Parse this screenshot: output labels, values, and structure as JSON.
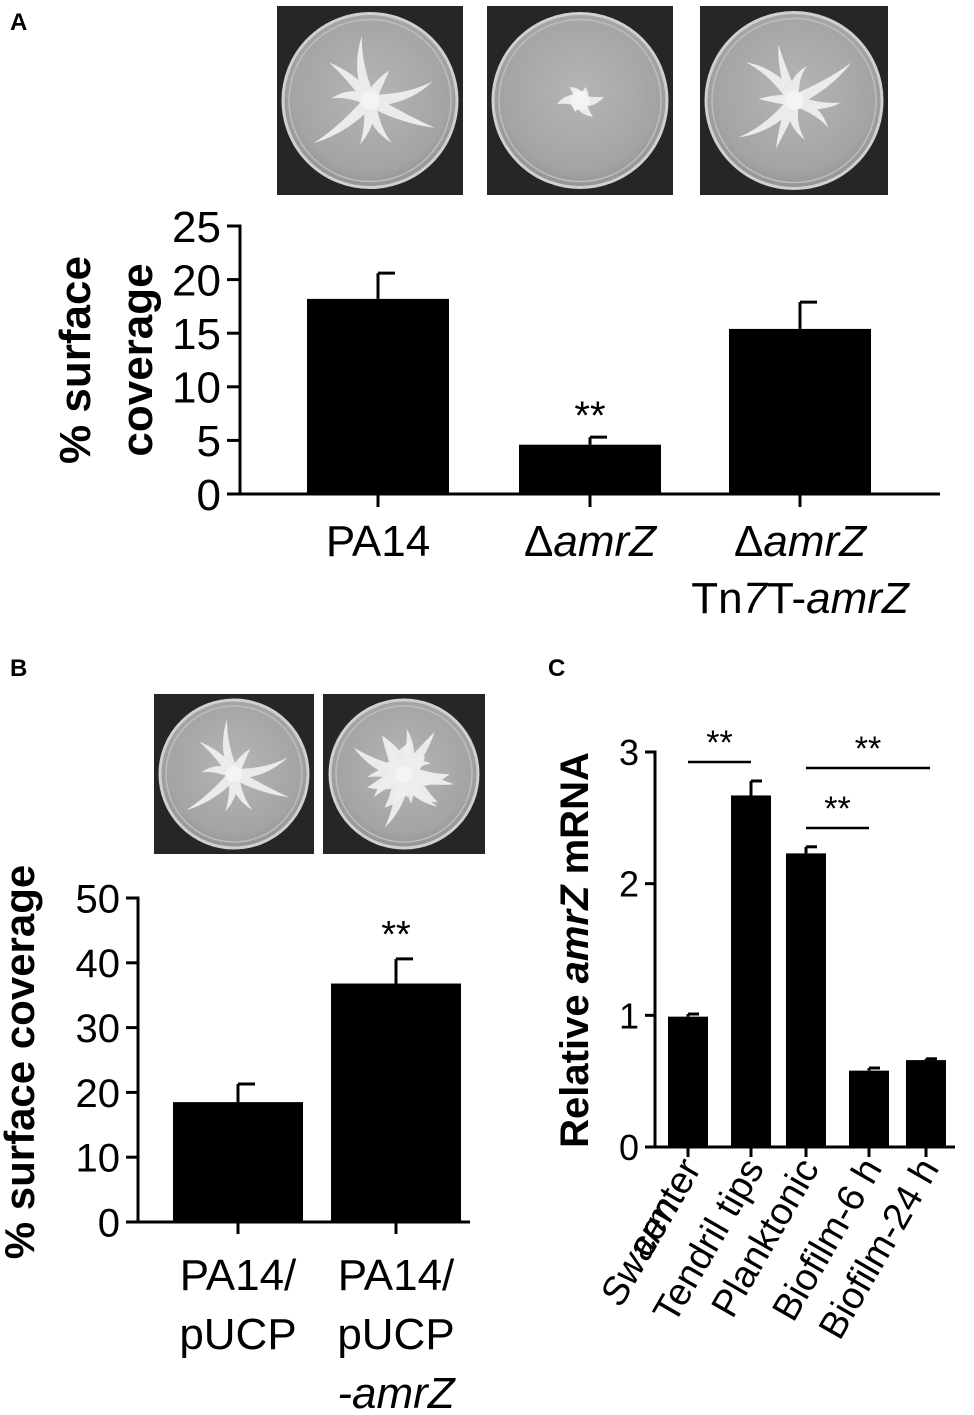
{
  "panels": [
    {
      "label": "A"
    },
    {
      "label": "B"
    },
    {
      "label": "C"
    }
  ],
  "chart_data": [
    {
      "type": "bar",
      "panel": "A",
      "ylabel_lines": [
        "% surface",
        "coverage"
      ],
      "categories": [
        {
          "lines": [
            {
              "parts": [
                {
                  "t": "PA14",
                  "i": false
                }
              ]
            }
          ]
        },
        {
          "lines": [
            {
              "parts": [
                {
                  "t": "Δ",
                  "i": false
                },
                {
                  "t": "amrZ",
                  "i": true
                }
              ]
            }
          ]
        },
        {
          "lines": [
            {
              "parts": [
                {
                  "t": "Δ",
                  "i": false
                },
                {
                  "t": "amrZ",
                  "i": true
                }
              ]
            },
            {
              "parts": [
                {
                  "t": "Tn",
                  "i": false
                },
                {
                  "t": "7",
                  "i": true
                },
                {
                  "t": "T-",
                  "i": false
                },
                {
                  "t": "amrZ",
                  "i": true
                }
              ]
            }
          ]
        }
      ],
      "values": [
        18.2,
        4.6,
        15.4
      ],
      "errors": [
        2.4,
        0.7,
        2.5
      ],
      "significance": [
        "",
        "**",
        ""
      ],
      "ylim": [
        0,
        25
      ],
      "yticks": [
        "0",
        "5",
        "10",
        "15",
        "20",
        "25"
      ],
      "plate_images": 3
    },
    {
      "type": "bar",
      "panel": "B",
      "ylabel_lines": [
        "% surface coverage"
      ],
      "categories": [
        {
          "lines": [
            {
              "parts": [
                {
                  "t": "PA14/",
                  "i": false
                }
              ]
            },
            {
              "parts": [
                {
                  "t": "pUCP",
                  "i": false
                }
              ]
            }
          ]
        },
        {
          "lines": [
            {
              "parts": [
                {
                  "t": "PA14/",
                  "i": false
                }
              ]
            },
            {
              "parts": [
                {
                  "t": "pUCP",
                  "i": false
                }
              ]
            },
            {
              "parts": [
                {
                  "t": "-amrZ",
                  "i": true
                }
              ]
            }
          ]
        }
      ],
      "values": [
        18.5,
        36.8
      ],
      "errors": [
        2.8,
        3.8
      ],
      "significance": [
        "",
        "**"
      ],
      "ylim": [
        0,
        50
      ],
      "yticks": [
        "0",
        "10",
        "20",
        "30",
        "40",
        "50"
      ],
      "plate_images": 2
    },
    {
      "type": "bar",
      "panel": "C",
      "ylabel_parts": [
        {
          "t": "Relative ",
          "i": false
        },
        {
          "t": "amrZ",
          "i": true
        },
        {
          "t": " mRNA",
          "i": false
        }
      ],
      "categories": [
        {
          "lines": [
            {
              "parts": [
                {
                  "t": "Swarm",
                  "i": true
                }
              ]
            },
            {
              "parts": [
                {
                  "t": "center",
                  "i": false
                }
              ]
            }
          ]
        },
        {
          "lines": [
            {
              "parts": [
                {
                  "t": "Tendril tips",
                  "i": false
                }
              ]
            }
          ]
        },
        {
          "lines": [
            {
              "parts": [
                {
                  "t": "Planktonic",
                  "i": false
                }
              ]
            }
          ]
        },
        {
          "lines": [
            {
              "parts": [
                {
                  "t": "Biofilm-6 h",
                  "i": false
                }
              ]
            }
          ]
        },
        {
          "lines": [
            {
              "parts": [
                {
                  "t": "Biofilm-24 h",
                  "i": false
                }
              ]
            }
          ]
        }
      ],
      "values": [
        0.99,
        2.67,
        2.23,
        0.58,
        0.66
      ],
      "errors": [
        0.02,
        0.11,
        0.05,
        0.02,
        0.01
      ],
      "comparisons": [
        {
          "from": 0,
          "to": 1,
          "label": "**"
        },
        {
          "from": 2,
          "to": 3,
          "label": "**"
        },
        {
          "from": 2,
          "to": 4,
          "label": "**"
        }
      ],
      "ylim": [
        0,
        3
      ],
      "yticks": [
        "0",
        "1",
        "2",
        "3"
      ]
    }
  ]
}
